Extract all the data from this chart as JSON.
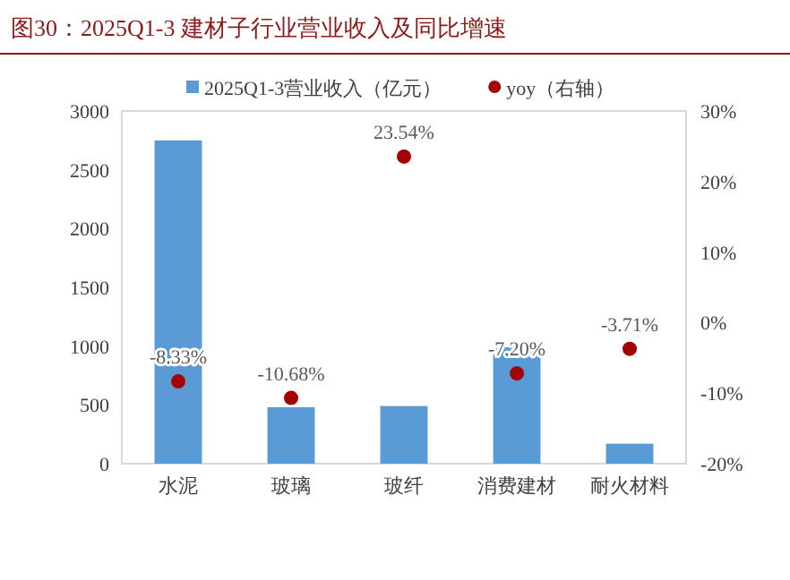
{
  "chart_data": {
    "type": "bar",
    "title": "图30：2025Q1-3 建材子行业营业收入及同比增速",
    "categories": [
      "水泥",
      "玻璃",
      "玻纤",
      "消费建材",
      "耐火材料"
    ],
    "series": [
      {
        "name": "2025Q1-3营业收入（亿元）",
        "color": "#5b9bd5",
        "values": [
          2750,
          480,
          490,
          990,
          170
        ]
      },
      {
        "name": "yoy（右轴）",
        "type": "scatter",
        "axis": "y2",
        "color": "#a50000",
        "marker": "circle",
        "values": [
          -8.33,
          -10.68,
          23.54,
          -7.2,
          -3.71
        ],
        "value_labels": [
          "-8.33%",
          "-10.68%",
          "23.54%",
          "-7.20%",
          "-3.71%"
        ]
      }
    ],
    "ylim": [
      0,
      3000
    ],
    "yticks": [
      0,
      500,
      1000,
      1500,
      2000,
      2500,
      3000
    ],
    "y2lim": [
      -20,
      30
    ],
    "y2ticks": [
      {
        "value": -20,
        "label": "-20%"
      },
      {
        "value": -10,
        "label": "-10%"
      },
      {
        "value": 0,
        "label": "0%"
      },
      {
        "value": 10,
        "label": "10%"
      },
      {
        "value": 20,
        "label": "20%"
      },
      {
        "value": 30,
        "label": "30%"
      }
    ],
    "legend": "top",
    "grid": false
  }
}
